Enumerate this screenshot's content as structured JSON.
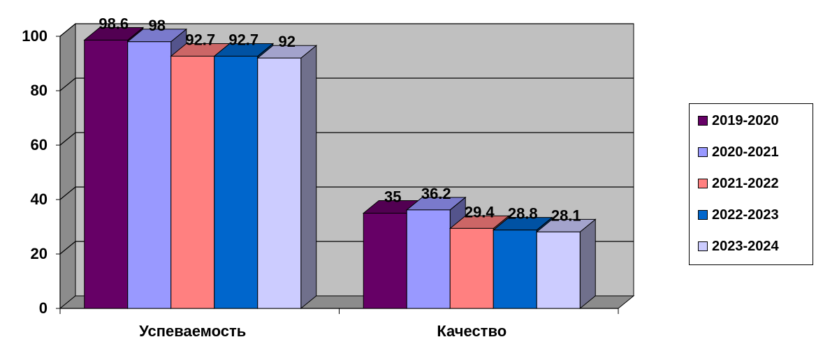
{
  "chart_data": {
    "type": "bar",
    "categories": [
      "Успеваемость",
      "Качество"
    ],
    "series": [
      {
        "name": "2019-2020",
        "values": [
          98.6,
          35
        ],
        "labels": [
          "98.6",
          "35"
        ],
        "color": "#660066"
      },
      {
        "name": "2020-2021",
        "values": [
          98,
          36.2
        ],
        "labels": [
          "98",
          "36.2"
        ],
        "color": "#9999ff"
      },
      {
        "name": "2021-2022",
        "values": [
          92.7,
          29.4
        ],
        "labels": [
          "92.7",
          "29.4"
        ],
        "color": "#ff8080"
      },
      {
        "name": "2022-2023",
        "values": [
          92.7,
          28.8
        ],
        "labels": [
          "92.7",
          "28.8"
        ],
        "color": "#0066cc"
      },
      {
        "name": "2023-2024",
        "values": [
          92,
          28.1
        ],
        "labels": [
          "92",
          "28.1"
        ],
        "color": "#ccccff"
      }
    ],
    "yticks": [
      "0",
      "20",
      "40",
      "60",
      "80",
      "100"
    ],
    "ylim": [
      0,
      100
    ],
    "grid": true,
    "legend_position": "right",
    "style": "3d-clustered-column"
  }
}
